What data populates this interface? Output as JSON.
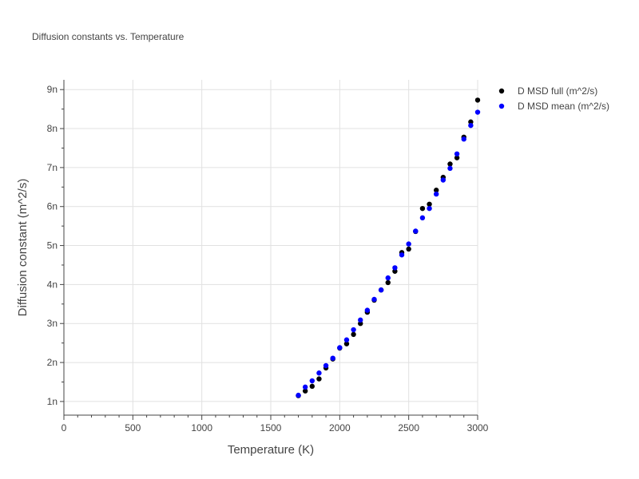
{
  "chart_data": {
    "type": "scatter",
    "title": "Diffusion constants vs. Temperature",
    "xlabel": "Temperature (K)",
    "ylabel": "Diffusion constant (m^2/s)",
    "xlim": [
      0,
      3000
    ],
    "ylim": [
      6.5e-10,
      9.25e-09
    ],
    "x_ticks": [
      0,
      500,
      1000,
      1500,
      2000,
      2500,
      3000
    ],
    "x_tick_labels": [
      "0",
      "500",
      "1000",
      "1500",
      "2000",
      "2500",
      "3000"
    ],
    "y_ticks": [
      1e-09,
      2e-09,
      3e-09,
      4e-09,
      5e-09,
      6e-09,
      7e-09,
      8e-09,
      9e-09
    ],
    "y_tick_labels": [
      "1n",
      "2n",
      "3n",
      "4n",
      "5n",
      "6n",
      "7n",
      "8n",
      "9n"
    ],
    "grid": true,
    "legend_position": "top-right",
    "series": [
      {
        "name": "D MSD full (m^2/s)",
        "color": "#000000",
        "x": [
          1700,
          1750,
          1800,
          1850,
          1900,
          1950,
          2000,
          2050,
          2100,
          2150,
          2200,
          2250,
          2300,
          2350,
          2400,
          2450,
          2500,
          2550,
          2600,
          2650,
          2700,
          2750,
          2800,
          2850,
          2900,
          2950,
          3000
        ],
        "y": [
          1.15e-09,
          1.27e-09,
          1.39e-09,
          1.58e-09,
          1.86e-09,
          2.09e-09,
          2.37e-09,
          2.48e-09,
          2.72e-09,
          3e-09,
          3.29e-09,
          3.6e-09,
          3.86e-09,
          4.05e-09,
          4.34e-09,
          4.82e-09,
          4.91e-09,
          5.36e-09,
          5.95e-09,
          6.06e-09,
          6.42e-09,
          6.75e-09,
          7.09e-09,
          7.25e-09,
          7.78e-09,
          8.17e-09,
          8.73e-09
        ]
      },
      {
        "name": "D MSD mean (m^2/s)",
        "color": "#0000ff",
        "x": [
          1700,
          1750,
          1800,
          1850,
          1900,
          1950,
          2000,
          2050,
          2100,
          2150,
          2200,
          2250,
          2300,
          2350,
          2400,
          2450,
          2500,
          2550,
          2600,
          2650,
          2700,
          2750,
          2800,
          2850,
          2900,
          2950,
          3000
        ],
        "y": [
          1.16e-09,
          1.37e-09,
          1.53e-09,
          1.73e-09,
          1.92e-09,
          2.11e-09,
          2.38e-09,
          2.58e-09,
          2.84e-09,
          3.09e-09,
          3.34e-09,
          3.62e-09,
          3.86e-09,
          4.17e-09,
          4.43e-09,
          4.76e-09,
          5.04e-09,
          5.37e-09,
          5.71e-09,
          5.95e-09,
          6.32e-09,
          6.68e-09,
          6.98e-09,
          7.35e-09,
          7.73e-09,
          8.08e-09,
          8.42e-09
        ]
      }
    ]
  }
}
